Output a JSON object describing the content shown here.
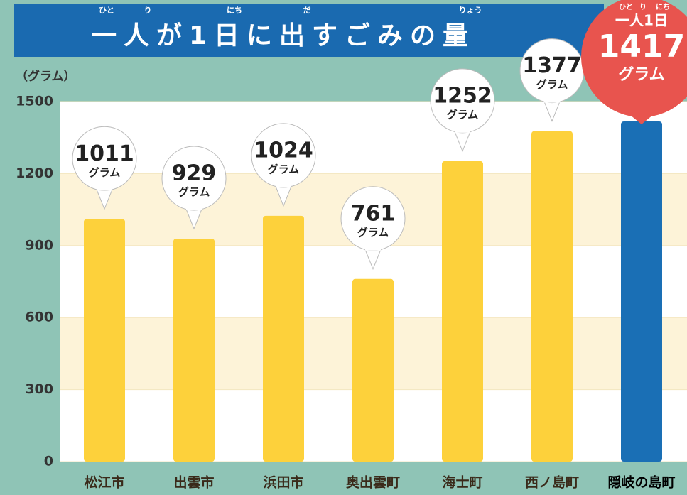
{
  "chart_data": {
    "type": "bar",
    "title": "一人が1日に出すごみの量",
    "title_ruby": [
      "ひと",
      "り",
      "にち",
      "だ",
      "りょう"
    ],
    "y_label": "（グラム）",
    "categories": [
      "松江市",
      "出雲市",
      "浜田市",
      "奥出雲町",
      "海士町",
      "西ノ島町",
      "隠岐の島町"
    ],
    "values": [
      1011,
      929,
      1024,
      761,
      1252,
      1377,
      1417
    ],
    "colors": [
      "#fdd13b",
      "#fdd13b",
      "#fdd13b",
      "#fdd13b",
      "#fdd13b",
      "#fdd13b",
      "#1a6fb5"
    ],
    "value_unit": "グラム",
    "highlight": {
      "index": 6,
      "label": "一人1日",
      "ruby": [
        "ひと",
        "り",
        "にち"
      ],
      "color": "#e8544e"
    },
    "ylim": [
      0,
      1500
    ],
    "yticks": [
      0,
      300,
      600,
      900,
      1200,
      1500
    ],
    "grid": true
  }
}
